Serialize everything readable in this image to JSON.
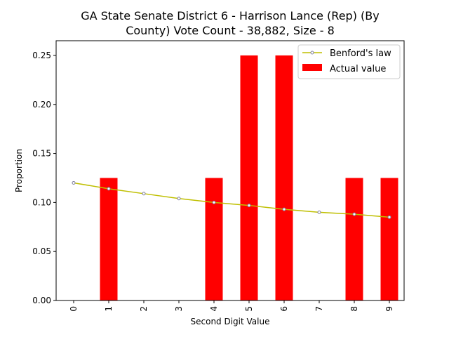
{
  "chart_data": {
    "type": "bar",
    "title_line1": "GA State Senate District 6 - Harrison Lance (Rep) (By",
    "title_line2": "County) Vote Count - 38,882, Size - 8",
    "xlabel": "Second Digit Value",
    "ylabel": "Proportion",
    "categories": [
      "0",
      "1",
      "2",
      "3",
      "4",
      "5",
      "6",
      "7",
      "8",
      "9"
    ],
    "ylim": [
      0,
      0.265
    ],
    "yticks": [
      0.0,
      0.05,
      0.1,
      0.15,
      0.2,
      0.25
    ],
    "ytick_labels": [
      "0.00",
      "0.05",
      "0.10",
      "0.15",
      "0.20",
      "0.25"
    ],
    "grid": false,
    "legend_position": "top-right",
    "series": [
      {
        "name": "Actual value",
        "kind": "bar",
        "color": "#ff0000",
        "values": [
          0,
          0.125,
          0,
          0,
          0.125,
          0.25,
          0.25,
          0,
          0.125,
          0.125
        ]
      },
      {
        "name": "Benford's law",
        "kind": "line",
        "color": "#bfbf00",
        "marker_edge": "#7f7f9f",
        "values": [
          0.12,
          0.114,
          0.109,
          0.104,
          0.1,
          0.097,
          0.093,
          0.09,
          0.088,
          0.085
        ]
      }
    ]
  }
}
